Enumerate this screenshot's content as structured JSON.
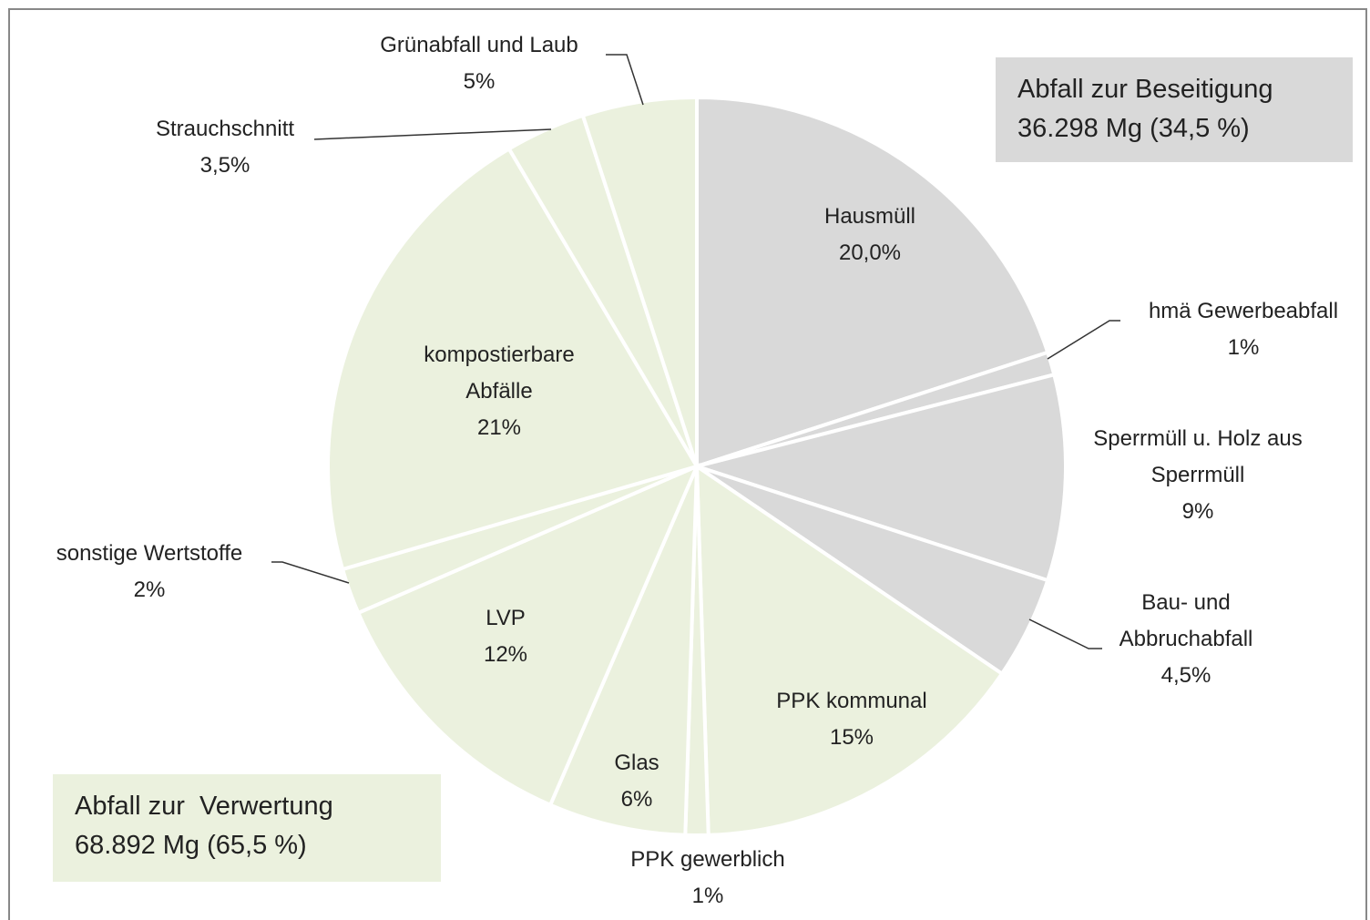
{
  "chart_data": {
    "type": "pie",
    "categories": [
      "Hausmüll",
      "hmä Gewerbeabfall",
      "Sperrmüll u. Holz aus Sperrmüll",
      "Bau- und Abbruchabfall",
      "PPK kommunal",
      "PPK gewerblich",
      "Glas",
      "LVP",
      "sonstige Wertstoffe",
      "kompostierbare Abfälle",
      "Strauchschnitt",
      "Grünabfall und Laub"
    ],
    "values": [
      20.0,
      1,
      9,
      4.5,
      15,
      1,
      6,
      12,
      2,
      21,
      3.5,
      5
    ],
    "value_labels": [
      "20,0%",
      "1%",
      "9%",
      "4,5%",
      "15%",
      "1%",
      "6%",
      "12%",
      "2%",
      "21%",
      "3,5%",
      "5%"
    ],
    "colors": [
      "#d9d9d9",
      "#d9d9d9",
      "#d9d9d9",
      "#d9d9d9",
      "#ebf1de",
      "#ebf1de",
      "#ebf1de",
      "#ebf1de",
      "#ebf1de",
      "#ebf1de",
      "#ebf1de",
      "#ebf1de"
    ],
    "annotations": [
      {
        "title": "Abfall zur Beseitigung",
        "text": "36.298 Mg (34,5 %)",
        "color": "#d9d9d9"
      },
      {
        "title": "Abfall zur  Verwertung",
        "text": "68.892 Mg (65,5 %)",
        "color": "#ebf1de"
      }
    ]
  }
}
